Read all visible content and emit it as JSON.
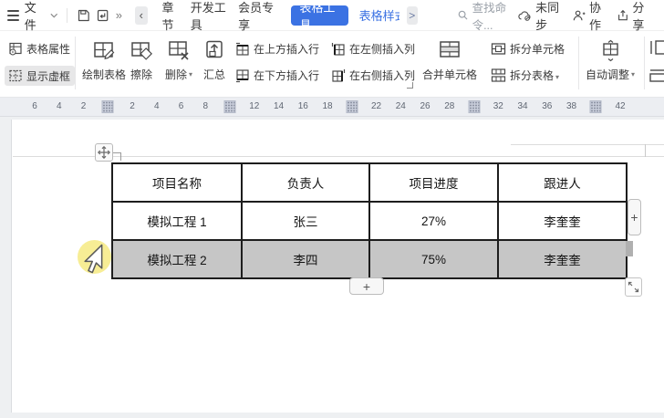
{
  "topbar": {
    "file_label": "文件",
    "tabs_left": [
      "章节",
      "开发工具",
      "会员专享"
    ],
    "active_tab": "表格工具",
    "style_tab": "表格样式",
    "style_tab_expand": ">",
    "back_chevron": "‹",
    "more_chevron": "»",
    "search_placeholder": "查找命令...",
    "sync_label": "未同步",
    "collab_label": "协作",
    "share_label": "分享"
  },
  "ribbon": {
    "table_properties": "表格属性",
    "show_gridlines": "显示虚框",
    "draw_table": "绘制表格",
    "eraser": "擦除",
    "delete": "删除",
    "summary": "汇总",
    "insert_row_above": "在上方插入行",
    "insert_row_below": "在下方插入行",
    "insert_col_left": "在左侧插入列",
    "insert_col_right": "在右侧插入列",
    "merge_cells": "合并单元格",
    "split_cells": "拆分单元格",
    "split_table": "拆分表格",
    "autofit": "自动调整"
  },
  "ruler": {
    "items": [
      "6",
      "4",
      "2",
      "M",
      "2",
      "4",
      "6",
      "8",
      "M",
      "12",
      "14",
      "16",
      "18",
      "M",
      "22",
      "24",
      "26",
      "28",
      "M",
      "32",
      "34",
      "36",
      "38",
      "M",
      "42"
    ]
  },
  "table": {
    "headers": [
      "项目名称",
      "负责人",
      "项目进度",
      "跟进人"
    ],
    "rows": [
      {
        "cells": [
          "模拟工程 1",
          "张三",
          "27%",
          "李奎奎"
        ],
        "selected": false
      },
      {
        "cells": [
          "模拟工程 2",
          "李四",
          "75%",
          "李奎奎"
        ],
        "selected": true
      }
    ]
  },
  "doc_controls": {
    "add_column_label": "+",
    "add_row_label": "+"
  },
  "icons": [
    "menu-icon",
    "chevron-down-icon",
    "save-icon",
    "export-icon",
    "more-icon",
    "back-icon",
    "search-icon",
    "cloud-sync-icon",
    "collaborate-icon",
    "share-icon",
    "table-properties-icon",
    "show-gridlines-icon",
    "draw-table-icon",
    "eraser-icon",
    "delete-table-icon",
    "summary-icon",
    "insert-row-above-icon",
    "insert-row-below-icon",
    "insert-col-left-icon",
    "insert-col-right-icon",
    "merge-cells-icon",
    "split-cells-icon",
    "split-table-icon",
    "autofit-icon",
    "col-width-icon",
    "row-height-icon",
    "move-table-icon",
    "resize-table-icon",
    "click-highlight",
    "mouse-cursor"
  ],
  "colors": {
    "accent": "#3b72e3",
    "selected_row": "#c6c6c6",
    "table_border": "#1d1d1d",
    "click_highlight": "#f6ec8c"
  }
}
